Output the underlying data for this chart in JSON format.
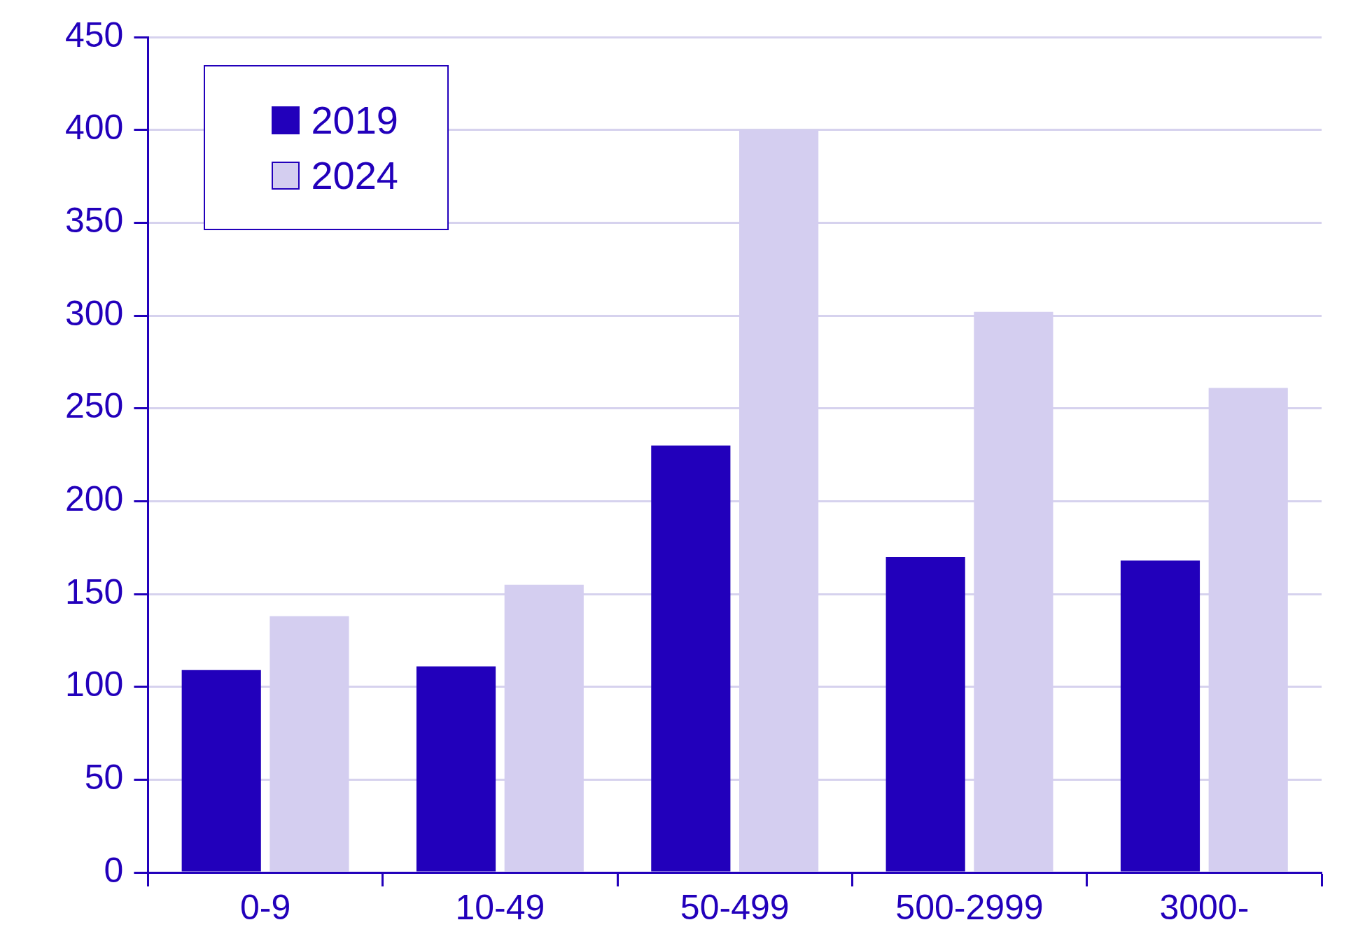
{
  "chart_data": {
    "type": "bar",
    "categories": [
      "0-9",
      "10-49",
      "50-499",
      "500-2999",
      "3000-"
    ],
    "series": [
      {
        "name": "2019",
        "color": "#2200bb",
        "values": [
          109,
          111,
          230,
          170,
          168
        ]
      },
      {
        "name": "2024",
        "color": "#d4cef0",
        "values": [
          138,
          155,
          400,
          302,
          261
        ]
      }
    ],
    "ylim": [
      0,
      450
    ],
    "yticks": [
      0,
      50,
      100,
      150,
      200,
      250,
      300,
      350,
      400,
      450
    ],
    "grid": "y",
    "legend": "top left"
  }
}
